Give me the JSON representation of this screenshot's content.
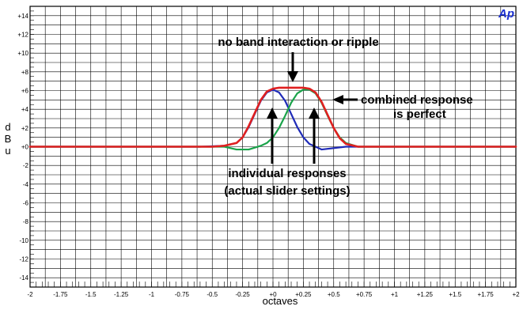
{
  "logo_text": "Ap",
  "colors": {
    "grid": "#000000",
    "background": "#ffffff",
    "series_low": "#1f2bb8",
    "series_high": "#1aa34a",
    "series_combined": "#e02020",
    "logo": "#1a2fd0"
  },
  "chart_data": {
    "type": "line",
    "title": "",
    "xlabel": "octaves",
    "ylabel": "dBu",
    "xlim": [
      -2,
      2
    ],
    "ylim": [
      -15,
      15
    ],
    "x_ticks": [
      "-2",
      "-1.75",
      "-1.5",
      "-1.25",
      "-1",
      "-0.75",
      "-0.5",
      "-0.25",
      "+0",
      "+0.25",
      "+0.5",
      "+0.75",
      "+1",
      "+1.25",
      "+1.5",
      "+1.75",
      "+2"
    ],
    "y_ticks": [
      "+14",
      "+12",
      "+10",
      "+8",
      "+6",
      "+4",
      "+2",
      "+0",
      "-2",
      "-4",
      "-6",
      "-8",
      "-10",
      "-12",
      "-14"
    ],
    "grid": true,
    "series": [
      {
        "color": "#1f2bb8",
        "x": [
          -2,
          -0.6,
          -0.4,
          -0.3,
          -0.25,
          -0.2,
          -0.15,
          -0.1,
          -0.05,
          0,
          0.05,
          0.1,
          0.15,
          0.2,
          0.25,
          0.3,
          0.4,
          0.6,
          2
        ],
        "y": [
          0,
          0,
          0.1,
          0.4,
          1.0,
          2.1,
          3.5,
          4.9,
          5.8,
          6.1,
          5.8,
          4.9,
          3.5,
          2.1,
          1.0,
          0.3,
          -0.3,
          0,
          0
        ]
      },
      {
        "color": "#1aa34a",
        "x": [
          -2,
          -0.4,
          -0.3,
          -0.2,
          -0.1,
          -0.05,
          0,
          0.05,
          0.1,
          0.15,
          0.2,
          0.25,
          0.3,
          0.35,
          0.4,
          0.45,
          0.5,
          0.55,
          0.6,
          0.7,
          0.8,
          2
        ],
        "y": [
          0,
          0,
          -0.3,
          -0.3,
          0.1,
          0.4,
          1.0,
          2.0,
          3.3,
          4.7,
          5.7,
          6.1,
          6.1,
          5.7,
          4.7,
          3.3,
          2.0,
          1.0,
          0.4,
          0,
          0,
          0
        ]
      },
      {
        "color": "#e02020",
        "x": [
          -2,
          -0.5,
          -0.4,
          -0.3,
          -0.25,
          -0.2,
          -0.15,
          -0.1,
          -0.05,
          0,
          0.05,
          0.1,
          0.15,
          0.2,
          0.25,
          0.3,
          0.35,
          0.4,
          0.45,
          0.5,
          0.55,
          0.6,
          0.7,
          0.8,
          2
        ],
        "y": [
          0,
          0,
          0.1,
          0.4,
          1.0,
          2.2,
          3.6,
          5.0,
          5.9,
          6.2,
          6.3,
          6.3,
          6.3,
          6.3,
          6.3,
          6.2,
          5.8,
          4.8,
          3.4,
          2.0,
          0.9,
          0.3,
          0,
          0,
          0
        ]
      }
    ],
    "annotations": {
      "top": "no band interaction or ripple",
      "right_line1": "combined response",
      "right_line2": "is perfect",
      "bottom_line1": "individual responses",
      "bottom_line2": "(actual slider settings)"
    }
  }
}
